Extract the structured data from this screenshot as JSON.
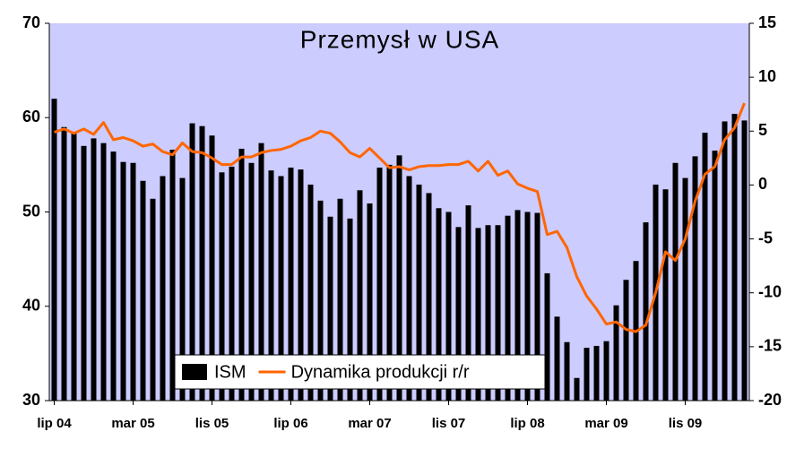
{
  "chart_data": {
    "type": "bar_line",
    "title": "Przemysł w USA",
    "categories": [
      "lip 04",
      null,
      null,
      null,
      null,
      null,
      null,
      null,
      "mar 05",
      null,
      null,
      null,
      null,
      null,
      null,
      null,
      "lis 05",
      null,
      null,
      null,
      null,
      null,
      null,
      null,
      "lip 06",
      null,
      null,
      null,
      null,
      null,
      null,
      null,
      "mar 07",
      null,
      null,
      null,
      null,
      null,
      null,
      null,
      "lis 07",
      null,
      null,
      null,
      null,
      null,
      null,
      null,
      "lip 08",
      null,
      null,
      null,
      null,
      null,
      null,
      null,
      "mar 09",
      null,
      null,
      null,
      null,
      null,
      null,
      null,
      "lis 09",
      null,
      null,
      null,
      null,
      null,
      null
    ],
    "series": [
      {
        "name": "ISM",
        "type": "bar",
        "color": "#000000",
        "axis": "y",
        "values": [
          62.0,
          59.0,
          58.5,
          57.0,
          57.8,
          57.3,
          56.4,
          55.3,
          55.2,
          53.3,
          51.4,
          53.8,
          56.6,
          53.6,
          59.4,
          59.1,
          58.1,
          54.2,
          54.8,
          56.7,
          55.2,
          57.3,
          54.4,
          53.8,
          54.7,
          54.5,
          52.9,
          51.2,
          49.5,
          51.4,
          49.3,
          52.3,
          50.9,
          54.7,
          55.0,
          56.0,
          53.8,
          52.9,
          52.0,
          50.4,
          50.0,
          48.4,
          50.7,
          48.3,
          48.6,
          48.6,
          49.6,
          50.2,
          50.0,
          49.9,
          43.5,
          38.9,
          36.2,
          32.4,
          35.6,
          35.8,
          36.3,
          40.1,
          42.8,
          44.8,
          48.9,
          52.9,
          52.4,
          55.2,
          53.6,
          55.9,
          58.4,
          56.5,
          59.6,
          60.4,
          59.7
        ]
      },
      {
        "name": "Dynamika produkcji r/r",
        "type": "line",
        "color": "#ff6600",
        "axis": "y2",
        "values": [
          4.9,
          5.2,
          4.8,
          5.2,
          4.7,
          5.8,
          4.2,
          4.4,
          4.1,
          3.6,
          3.8,
          3.1,
          2.8,
          3.9,
          3.1,
          3.0,
          2.5,
          1.9,
          1.9,
          2.6,
          2.6,
          3.0,
          3.2,
          3.3,
          3.6,
          4.1,
          4.4,
          5.0,
          4.8,
          4.0,
          3.0,
          2.6,
          3.4,
          2.5,
          1.6,
          1.7,
          1.4,
          1.7,
          1.8,
          1.8,
          1.9,
          1.9,
          2.2,
          1.3,
          2.2,
          0.9,
          1.3,
          0.1,
          -0.3,
          -0.6,
          -4.6,
          -4.3,
          -5.8,
          -8.5,
          -10.3,
          -11.5,
          -12.9,
          -12.7,
          -13.4,
          -13.6,
          -13.0,
          -10.0,
          -6.2,
          -7.0,
          -5.0,
          -1.5,
          1.0,
          1.7,
          4.2,
          5.3,
          7.6
        ]
      }
    ],
    "ylim": [
      30,
      70
    ],
    "yticks": [
      30,
      40,
      50,
      60,
      70
    ],
    "y2lim": [
      -20,
      15
    ],
    "y2ticks": [
      -20,
      -15,
      -10,
      -5,
      0,
      5,
      10,
      15
    ],
    "legend": "bottom"
  }
}
